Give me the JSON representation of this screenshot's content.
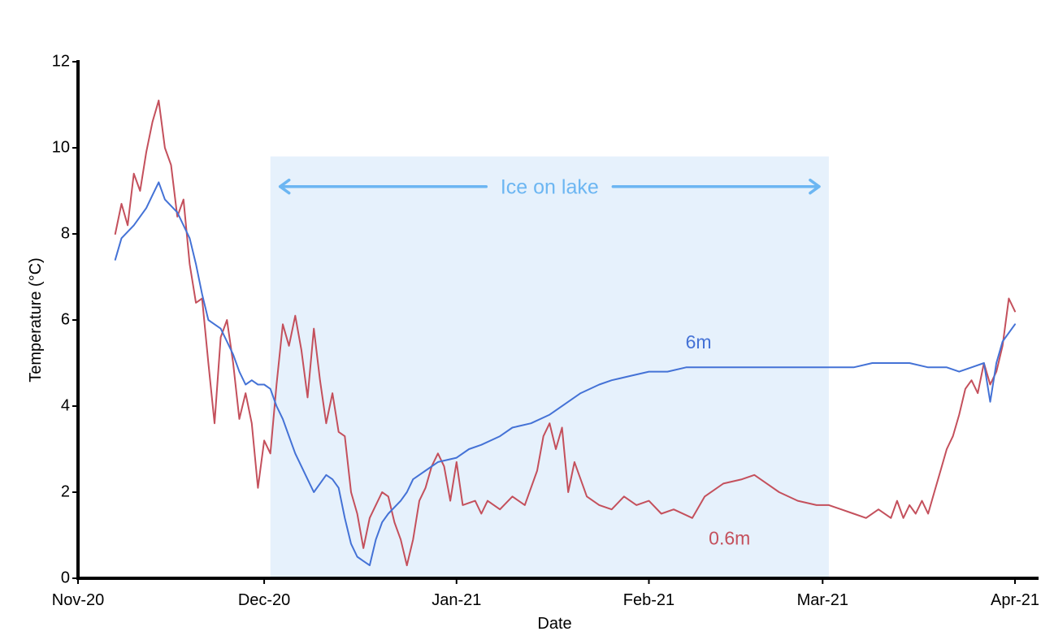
{
  "chart_data": {
    "type": "line",
    "title": "",
    "xlabel": "Date",
    "ylabel": "Temperature (°C)",
    "x_type": "date",
    "xlim": [
      "2020-11-01",
      "2021-04-01"
    ],
    "ylim": [
      0,
      12
    ],
    "x_ticks": [
      {
        "date": "2020-11-01",
        "label": "Nov-20"
      },
      {
        "date": "2020-12-01",
        "label": "Dec-20"
      },
      {
        "date": "2021-01-01",
        "label": "Jan-21"
      },
      {
        "date": "2021-02-01",
        "label": "Feb-21"
      },
      {
        "date": "2021-03-01",
        "label": "Mar-21"
      },
      {
        "date": "2021-04-01",
        "label": "Apr-21"
      }
    ],
    "y_ticks": [
      0,
      2,
      4,
      6,
      8,
      10,
      12
    ],
    "grid": false,
    "shaded_region": {
      "start": "2020-12-02",
      "end": "2021-03-02",
      "color": "#e6f1fc",
      "label": "Ice on lake",
      "label_color": "#6cb6f2"
    },
    "series": [
      {
        "name": "6m",
        "color": "#4472d6",
        "points": [
          [
            "2020-11-07",
            7.4
          ],
          [
            "2020-11-08",
            7.9
          ],
          [
            "2020-11-10",
            8.2
          ],
          [
            "2020-11-12",
            8.6
          ],
          [
            "2020-11-13",
            8.9
          ],
          [
            "2020-11-14",
            9.2
          ],
          [
            "2020-11-15",
            8.8
          ],
          [
            "2020-11-17",
            8.5
          ],
          [
            "2020-11-19",
            7.9
          ],
          [
            "2020-11-20",
            7.3
          ],
          [
            "2020-11-21",
            6.6
          ],
          [
            "2020-11-22",
            6.0
          ],
          [
            "2020-11-23",
            5.9
          ],
          [
            "2020-11-24",
            5.8
          ],
          [
            "2020-11-25",
            5.5
          ],
          [
            "2020-11-26",
            5.2
          ],
          [
            "2020-11-27",
            4.8
          ],
          [
            "2020-11-28",
            4.5
          ],
          [
            "2020-11-29",
            4.6
          ],
          [
            "2020-11-30",
            4.5
          ],
          [
            "2020-12-01",
            4.5
          ],
          [
            "2020-12-02",
            4.4
          ],
          [
            "2020-12-03",
            4.0
          ],
          [
            "2020-12-04",
            3.7
          ],
          [
            "2020-12-05",
            3.3
          ],
          [
            "2020-12-06",
            2.9
          ],
          [
            "2020-12-07",
            2.6
          ],
          [
            "2020-12-08",
            2.3
          ],
          [
            "2020-12-09",
            2.0
          ],
          [
            "2020-12-10",
            2.2
          ],
          [
            "2020-12-11",
            2.4
          ],
          [
            "2020-12-12",
            2.3
          ],
          [
            "2020-12-13",
            2.1
          ],
          [
            "2020-12-14",
            1.4
          ],
          [
            "2020-12-15",
            0.8
          ],
          [
            "2020-12-16",
            0.5
          ],
          [
            "2020-12-17",
            0.4
          ],
          [
            "2020-12-18",
            0.3
          ],
          [
            "2020-12-19",
            0.9
          ],
          [
            "2020-12-20",
            1.3
          ],
          [
            "2020-12-21",
            1.5
          ],
          [
            "2020-12-23",
            1.8
          ],
          [
            "2020-12-24",
            2.0
          ],
          [
            "2020-12-25",
            2.3
          ],
          [
            "2020-12-27",
            2.5
          ],
          [
            "2020-12-29",
            2.7
          ],
          [
            "2021-01-01",
            2.8
          ],
          [
            "2021-01-03",
            3.0
          ],
          [
            "2021-01-05",
            3.1
          ],
          [
            "2021-01-08",
            3.3
          ],
          [
            "2021-01-10",
            3.5
          ],
          [
            "2021-01-13",
            3.6
          ],
          [
            "2021-01-16",
            3.8
          ],
          [
            "2021-01-19",
            4.1
          ],
          [
            "2021-01-21",
            4.3
          ],
          [
            "2021-01-24",
            4.5
          ],
          [
            "2021-01-26",
            4.6
          ],
          [
            "2021-01-29",
            4.7
          ],
          [
            "2021-02-01",
            4.8
          ],
          [
            "2021-02-04",
            4.8
          ],
          [
            "2021-02-07",
            4.9
          ],
          [
            "2021-02-10",
            4.9
          ],
          [
            "2021-02-13",
            4.9
          ],
          [
            "2021-02-16",
            4.9
          ],
          [
            "2021-02-19",
            4.9
          ],
          [
            "2021-02-22",
            4.9
          ],
          [
            "2021-02-25",
            4.9
          ],
          [
            "2021-02-28",
            4.9
          ],
          [
            "2021-03-03",
            4.9
          ],
          [
            "2021-03-06",
            4.9
          ],
          [
            "2021-03-09",
            5.0
          ],
          [
            "2021-03-12",
            5.0
          ],
          [
            "2021-03-15",
            5.0
          ],
          [
            "2021-03-18",
            4.9
          ],
          [
            "2021-03-21",
            4.9
          ],
          [
            "2021-03-23",
            4.8
          ],
          [
            "2021-03-25",
            4.9
          ],
          [
            "2021-03-27",
            5.0
          ],
          [
            "2021-03-28",
            4.1
          ],
          [
            "2021-03-29",
            5.0
          ],
          [
            "2021-03-30",
            5.5
          ],
          [
            "2021-04-01",
            5.9
          ]
        ]
      },
      {
        "name": "0.6m",
        "color": "#c4505c",
        "points": [
          [
            "2020-11-07",
            8.0
          ],
          [
            "2020-11-08",
            8.7
          ],
          [
            "2020-11-09",
            8.2
          ],
          [
            "2020-11-10",
            9.4
          ],
          [
            "2020-11-11",
            9.0
          ],
          [
            "2020-11-12",
            9.9
          ],
          [
            "2020-11-13",
            10.6
          ],
          [
            "2020-11-14",
            11.1
          ],
          [
            "2020-11-15",
            10.0
          ],
          [
            "2020-11-16",
            9.6
          ],
          [
            "2020-11-17",
            8.4
          ],
          [
            "2020-11-18",
            8.8
          ],
          [
            "2020-11-19",
            7.3
          ],
          [
            "2020-11-20",
            6.4
          ],
          [
            "2020-11-21",
            6.5
          ],
          [
            "2020-11-22",
            5.0
          ],
          [
            "2020-11-23",
            3.6
          ],
          [
            "2020-11-24",
            5.6
          ],
          [
            "2020-11-25",
            6.0
          ],
          [
            "2020-11-26",
            5.0
          ],
          [
            "2020-11-27",
            3.7
          ],
          [
            "2020-11-28",
            4.3
          ],
          [
            "2020-11-29",
            3.6
          ],
          [
            "2020-11-30",
            2.1
          ],
          [
            "2020-12-01",
            3.2
          ],
          [
            "2020-12-02",
            2.9
          ],
          [
            "2020-12-03",
            4.5
          ],
          [
            "2020-12-04",
            5.9
          ],
          [
            "2020-12-05",
            5.4
          ],
          [
            "2020-12-06",
            6.1
          ],
          [
            "2020-12-07",
            5.3
          ],
          [
            "2020-12-08",
            4.2
          ],
          [
            "2020-12-09",
            5.8
          ],
          [
            "2020-12-10",
            4.6
          ],
          [
            "2020-12-11",
            3.6
          ],
          [
            "2020-12-12",
            4.3
          ],
          [
            "2020-12-13",
            3.4
          ],
          [
            "2020-12-14",
            3.3
          ],
          [
            "2020-12-15",
            2.0
          ],
          [
            "2020-12-16",
            1.5
          ],
          [
            "2020-12-17",
            0.7
          ],
          [
            "2020-12-18",
            1.4
          ],
          [
            "2020-12-19",
            1.7
          ],
          [
            "2020-12-20",
            2.0
          ],
          [
            "2020-12-21",
            1.9
          ],
          [
            "2020-12-22",
            1.3
          ],
          [
            "2020-12-23",
            0.9
          ],
          [
            "2020-12-24",
            0.3
          ],
          [
            "2020-12-25",
            0.9
          ],
          [
            "2020-12-26",
            1.8
          ],
          [
            "2020-12-27",
            2.1
          ],
          [
            "2020-12-28",
            2.6
          ],
          [
            "2020-12-29",
            2.9
          ],
          [
            "2020-12-30",
            2.6
          ],
          [
            "2020-12-31",
            1.8
          ],
          [
            "2021-01-01",
            2.7
          ],
          [
            "2021-01-02",
            1.7
          ],
          [
            "2021-01-04",
            1.8
          ],
          [
            "2021-01-05",
            1.5
          ],
          [
            "2021-01-06",
            1.8
          ],
          [
            "2021-01-08",
            1.6
          ],
          [
            "2021-01-10",
            1.9
          ],
          [
            "2021-01-12",
            1.7
          ],
          [
            "2021-01-14",
            2.5
          ],
          [
            "2021-01-15",
            3.3
          ],
          [
            "2021-01-16",
            3.6
          ],
          [
            "2021-01-17",
            3.0
          ],
          [
            "2021-01-18",
            3.5
          ],
          [
            "2021-01-19",
            2.0
          ],
          [
            "2021-01-20",
            2.7
          ],
          [
            "2021-01-21",
            2.3
          ],
          [
            "2021-01-22",
            1.9
          ],
          [
            "2021-01-24",
            1.7
          ],
          [
            "2021-01-26",
            1.6
          ],
          [
            "2021-01-28",
            1.9
          ],
          [
            "2021-01-30",
            1.7
          ],
          [
            "2021-02-01",
            1.8
          ],
          [
            "2021-02-03",
            1.5
          ],
          [
            "2021-02-05",
            1.6
          ],
          [
            "2021-02-08",
            1.4
          ],
          [
            "2021-02-10",
            1.9
          ],
          [
            "2021-02-13",
            2.2
          ],
          [
            "2021-02-16",
            2.3
          ],
          [
            "2021-02-18",
            2.4
          ],
          [
            "2021-02-20",
            2.2
          ],
          [
            "2021-02-22",
            2.0
          ],
          [
            "2021-02-25",
            1.8
          ],
          [
            "2021-02-28",
            1.7
          ],
          [
            "2021-03-02",
            1.7
          ],
          [
            "2021-03-04",
            1.6
          ],
          [
            "2021-03-06",
            1.5
          ],
          [
            "2021-03-08",
            1.4
          ],
          [
            "2021-03-10",
            1.6
          ],
          [
            "2021-03-12",
            1.4
          ],
          [
            "2021-03-13",
            1.8
          ],
          [
            "2021-03-14",
            1.4
          ],
          [
            "2021-03-15",
            1.7
          ],
          [
            "2021-03-16",
            1.5
          ],
          [
            "2021-03-17",
            1.8
          ],
          [
            "2021-03-18",
            1.5
          ],
          [
            "2021-03-19",
            2.0
          ],
          [
            "2021-03-20",
            2.5
          ],
          [
            "2021-03-21",
            3.0
          ],
          [
            "2021-03-22",
            3.3
          ],
          [
            "2021-03-23",
            3.8
          ],
          [
            "2021-03-24",
            4.4
          ],
          [
            "2021-03-25",
            4.6
          ],
          [
            "2021-03-26",
            4.3
          ],
          [
            "2021-03-27",
            5.0
          ],
          [
            "2021-03-28",
            4.5
          ],
          [
            "2021-03-29",
            4.8
          ],
          [
            "2021-03-30",
            5.4
          ],
          [
            "2021-03-31",
            6.5
          ],
          [
            "2021-04-01",
            6.2
          ]
        ]
      }
    ],
    "series_labels": [
      {
        "series": "6m",
        "text": "6m",
        "date": "2021-02-09",
        "value": 5.45
      },
      {
        "series": "0.6m",
        "text": "0.6m",
        "date": "2021-02-14",
        "value": 0.9
      }
    ]
  }
}
